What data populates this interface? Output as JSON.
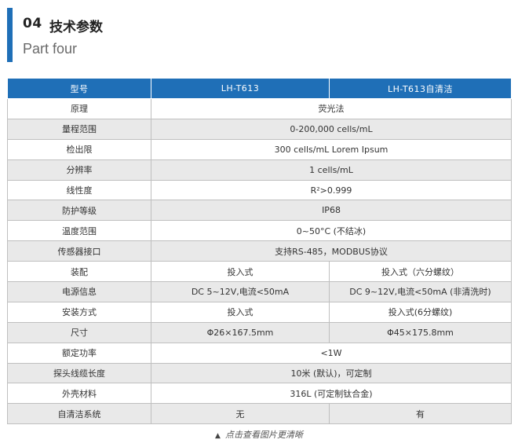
{
  "section": {
    "number": "04",
    "title": "技术参数",
    "subtitle": "Part four"
  },
  "table": {
    "headers": [
      "型号",
      "LH-T613",
      "LH-T613自清洁"
    ],
    "rows": [
      {
        "label": "原理",
        "merged": true,
        "value": "荧光法"
      },
      {
        "label": "量程范围",
        "merged": true,
        "value": "0-200,000  cells/mL"
      },
      {
        "label": "检出限",
        "merged": true,
        "value": "300 cells/mL  Lorem Ipsum"
      },
      {
        "label": "分辨率",
        "merged": true,
        "value": "1 cells/mL"
      },
      {
        "label": "线性度",
        "merged": true,
        "value": "R²>0.999"
      },
      {
        "label": "防护等级",
        "merged": true,
        "value": "IP68"
      },
      {
        "label": "温度范围",
        "merged": true,
        "value": "0~50°C (不结冰)"
      },
      {
        "label": "传感器接口",
        "merged": true,
        "value": "支持RS-485，MODBUS协议"
      },
      {
        "label": "装配",
        "merged": false,
        "v1": "投入式",
        "v2": "投入式（六分螺纹）"
      },
      {
        "label": "电源信息",
        "merged": false,
        "v1": "DC 5~12V,电流<50mA",
        "v2": "DC 9~12V,电流<50mA (非清洗时)"
      },
      {
        "label": "安装方式",
        "merged": false,
        "v1": "投入式",
        "v2": "投入式(6分螺纹)"
      },
      {
        "label": "尺寸",
        "merged": false,
        "v1": "Φ26×167.5mm",
        "v2": "Φ45×175.8mm"
      },
      {
        "label": "额定功率",
        "merged": true,
        "value": "<1W"
      },
      {
        "label": "探头线缆长度",
        "merged": true,
        "value": "10米 (默认)，可定制"
      },
      {
        "label": "外壳材料",
        "merged": true,
        "value": "316L (可定制钛合金)"
      },
      {
        "label": "自清洁系统",
        "merged": false,
        "v1": "无",
        "v2": "有"
      }
    ]
  },
  "footer": {
    "icon": "triangle-up-icon",
    "text": "点击查看图片更清晰"
  },
  "colors": {
    "accent": "#1f6fb7",
    "row_alt": "#e9e9e9"
  }
}
